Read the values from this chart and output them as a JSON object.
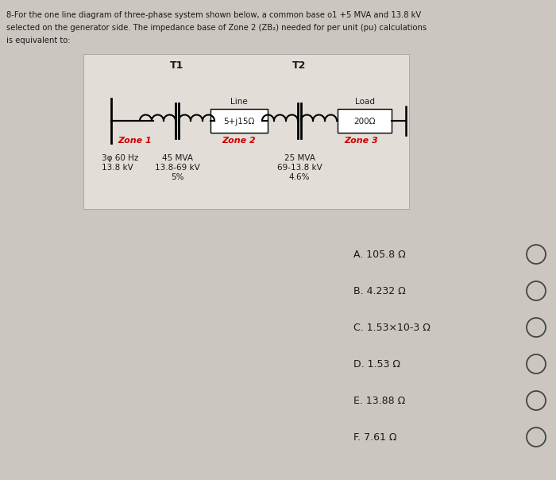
{
  "title_line1": "8-For the one line diagram of three-phase system shown below, a common base o1 +5 MVA and 13.8 kV",
  "title_line2": "selected on the generator side. The impedance base of Zone 2 (ZB₂) needed for per unit (pu) calculations",
  "title_line3": "is equivalent to:",
  "background_color": "#cbc7c0",
  "diagram_bg": "#e2ddd7",
  "text_color": "#1a1a1a",
  "red_text_color": "#cc0000",
  "zone1_label": "Zone 1",
  "zone2_label": "Zone 2",
  "zone3_label": "Zone 3",
  "t1_label": "T1",
  "t2_label": "T2",
  "line_label": "Line",
  "line_impedance": "5+j15Ω",
  "load_label": "Load",
  "load_impedance": "200Ω",
  "gen_label1": "3φ 60 Hz",
  "gen_label2": "13.8 kV",
  "t1_specs1": "45 MVA",
  "t1_specs2": "13.8-69 kV",
  "t1_specs3": "5%",
  "t2_specs1": "25 MVA",
  "t2_specs2": "69-13.8 kV",
  "t2_specs3": "4.6%",
  "options": [
    "A. 105.8 Ω",
    "B. 4.232 Ω",
    "C. 1.53×10-3 Ω",
    "D. 1.53 Ω",
    "E. 13.88 Ω",
    "F. 7.61 Ω"
  ]
}
